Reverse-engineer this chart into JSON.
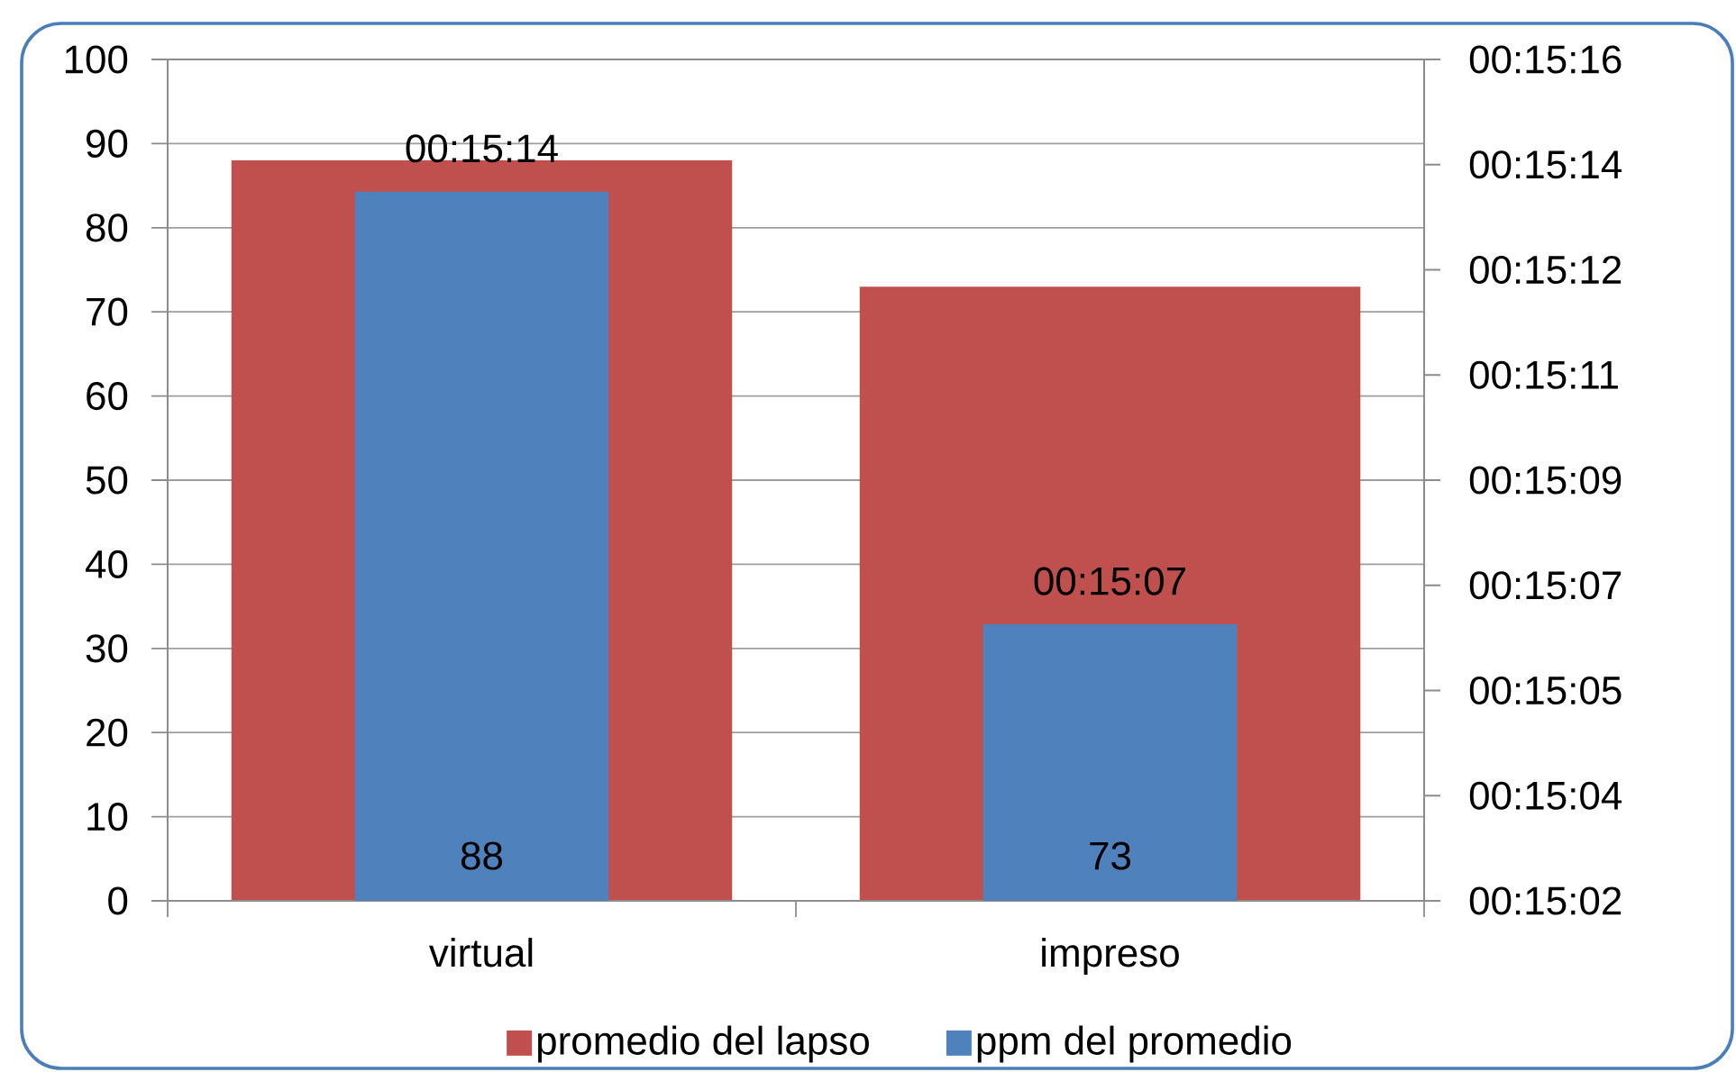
{
  "chart_data": {
    "type": "bar",
    "categories": [
      "virtual",
      "impreso"
    ],
    "series": [
      {
        "name": "promedio del lapso",
        "color": "#c0504d",
        "values": [
          88,
          73
        ],
        "value_labels": [
          "88",
          "73"
        ]
      },
      {
        "name": "ppm del promedio",
        "color": "#4f81bd",
        "axis": "y2",
        "values": [
          913.8,
          906.6
        ],
        "value_labels": [
          "00:15:14",
          "00:15:07"
        ]
      }
    ],
    "ylim": [
      0,
      100
    ],
    "yticks": [
      0,
      10,
      20,
      30,
      40,
      50,
      60,
      70,
      80,
      90,
      100
    ],
    "y2lim": [
      902,
      916
    ],
    "y2ticks": [
      {
        "value": 902,
        "label": "00:15:02"
      },
      {
        "value": 903.75,
        "label": "00:15:04"
      },
      {
        "value": 905.5,
        "label": "00:15:05"
      },
      {
        "value": 907.25,
        "label": "00:15:07"
      },
      {
        "value": 909,
        "label": "00:15:09"
      },
      {
        "value": 910.75,
        "label": "00:15:11"
      },
      {
        "value": 912.5,
        "label": "00:15:12"
      },
      {
        "value": 914.25,
        "label": "00:15:14"
      },
      {
        "value": 916,
        "label": "00:15:16"
      }
    ],
    "grid": "y",
    "legend": "bottom"
  }
}
